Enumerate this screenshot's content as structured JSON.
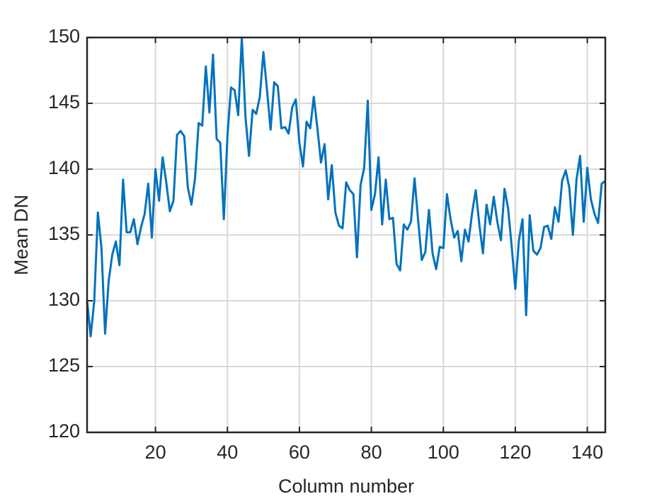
{
  "chart_data": {
    "type": "line",
    "x_label": "Column number",
    "y_label": "Mean DN",
    "x": [
      1,
      2,
      3,
      4,
      5,
      6,
      7,
      8,
      9,
      10,
      11,
      12,
      13,
      14,
      15,
      16,
      17,
      18,
      19,
      20,
      21,
      22,
      23,
      24,
      25,
      26,
      27,
      28,
      29,
      30,
      31,
      32,
      33,
      34,
      35,
      36,
      37,
      38,
      39,
      40,
      41,
      42,
      43,
      44,
      45,
      46,
      47,
      48,
      49,
      50,
      51,
      52,
      53,
      54,
      55,
      56,
      57,
      58,
      59,
      60,
      61,
      62,
      63,
      64,
      65,
      66,
      67,
      68,
      69,
      70,
      71,
      72,
      73,
      74,
      75,
      76,
      77,
      78,
      79,
      80,
      81,
      82,
      83,
      84,
      85,
      86,
      87,
      88,
      89,
      90,
      91,
      92,
      93,
      94,
      95,
      96,
      97,
      98,
      99,
      100,
      101,
      102,
      103,
      104,
      105,
      106,
      107,
      108,
      109,
      110,
      111,
      112,
      113,
      114,
      115,
      116,
      117,
      118,
      119,
      120,
      121,
      122,
      123,
      124,
      125,
      126,
      127,
      128,
      129,
      130,
      131,
      132,
      133,
      134,
      135,
      136,
      137,
      138,
      139,
      140,
      141,
      142,
      143,
      144,
      145
    ],
    "values": [
      130,
      127.3,
      130,
      136.7,
      134,
      127.5,
      131.5,
      133.5,
      134.5,
      132.7,
      139.2,
      135.2,
      135.2,
      136.2,
      134.3,
      135.6,
      136.6,
      138.9,
      134.8,
      140,
      137.6,
      140.9,
      139,
      136.8,
      137.6,
      142.6,
      142.9,
      142.5,
      138.6,
      137.3,
      139.3,
      143.5,
      143.3,
      147.8,
      144.3,
      148.7,
      142.3,
      142,
      136.2,
      142.5,
      146.2,
      146,
      144.1,
      150,
      144,
      141,
      144.5,
      144.2,
      145.5,
      148.9,
      146,
      143,
      146.6,
      146.3,
      143.1,
      143.2,
      142.7,
      144.7,
      145.3,
      142,
      140.2,
      143.6,
      143.1,
      145.5,
      143.1,
      140.5,
      141.9,
      137.7,
      140.3,
      136.7,
      135.7,
      135.5,
      139,
      138.4,
      138.1,
      133.3,
      138.8,
      140.1,
      145.2,
      136.9,
      138.1,
      140.9,
      135.8,
      139.2,
      136.2,
      136.3,
      132.8,
      132.3,
      135.8,
      135.4,
      136,
      139.3,
      136.1,
      133.1,
      133.7,
      136.9,
      133.6,
      132.4,
      134.1,
      134,
      138.1,
      136.2,
      134.8,
      135.3,
      133,
      135.4,
      134.5,
      136.7,
      138.4,
      135.8,
      133.6,
      137.3,
      135.8,
      137.9,
      136,
      134.6,
      138.5,
      137,
      134.1,
      130.9,
      134.6,
      136.2,
      128.9,
      136.5,
      133.8,
      133.5,
      134,
      135.6,
      135.7,
      134.7,
      137.1,
      136,
      139.1,
      139.9,
      138.6,
      135,
      139.2,
      141,
      136,
      140.1,
      137.7,
      136.6,
      135.9,
      138.9,
      139.1
    ],
    "color": "#0072bd",
    "xlim": [
      1,
      145
    ],
    "xticks": [
      20,
      40,
      60,
      80,
      100,
      120,
      140
    ],
    "ylim": [
      120,
      150
    ],
    "yticks": [
      120,
      125,
      130,
      135,
      140,
      145,
      150
    ],
    "grid": true
  }
}
